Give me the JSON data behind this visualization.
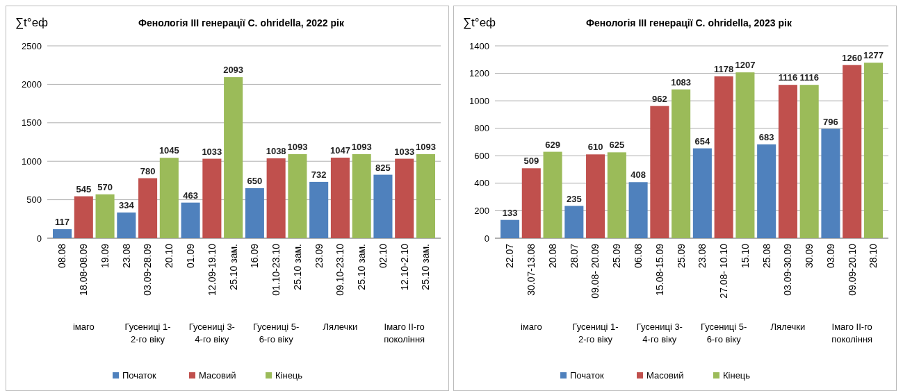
{
  "chart_data": [
    {
      "type": "bar",
      "title": "Фенологія ІІІ генерації C. ohridella, 2022 рік",
      "ylabel": "∑t°еф",
      "categories": [
        "08.08",
        "18.08-08.09",
        "19.09",
        "23.08",
        "03.09-28.09",
        "20.10",
        "01.09",
        "12.09-19.10",
        "25.10 зам.",
        "16.09",
        "01.10-23.10",
        "25.10 зам.",
        "23.09",
        "09.10-23.10",
        "25.10 зам.",
        "02.10",
        "12.10-2.10",
        "25.10 зам."
      ],
      "series": [
        {
          "name": "Початок",
          "color": "#4f81bd",
          "values": [
            117,
            null,
            null,
            334,
            null,
            null,
            463,
            null,
            null,
            650,
            null,
            null,
            732,
            null,
            null,
            825,
            null,
            null
          ]
        },
        {
          "name": "Масовий",
          "color": "#c0504d",
          "values": [
            null,
            545,
            null,
            null,
            780,
            null,
            null,
            1033,
            null,
            null,
            1038,
            null,
            null,
            1047,
            null,
            null,
            1033,
            null
          ]
        },
        {
          "name": "Кінець",
          "color": "#9bbb59",
          "values": [
            null,
            null,
            570,
            null,
            null,
            1045,
            null,
            null,
            2093,
            null,
            null,
            1093,
            null,
            null,
            1093,
            null,
            null,
            1093
          ]
        }
      ],
      "annotations": [
        "імаго",
        "Гусениці 1-2-го віку",
        "Гусениці 3-4-го віку",
        "Гусениці 5-6-го віку",
        "Лялечки",
        "Імаго ІІ-го покоління"
      ],
      "ylim": [
        0,
        2500
      ],
      "yticks": [
        0,
        500,
        1000,
        1500,
        2000,
        2500
      ],
      "grid": "y",
      "data_labels": true,
      "legend": "bottom"
    },
    {
      "type": "bar",
      "title": "Фенологія ІІІ генерації C. ohridella, 2023 рік",
      "ylabel": "∑t°еф",
      "categories": [
        "22.07",
        "30.07-13.08",
        "20.08",
        "28.07",
        "09.08- 20.09",
        "25.09",
        "06.08",
        "15.08-15.09",
        "25.09",
        "23.08",
        "27.08- 10.10",
        "15.10",
        "25.08",
        "03.09-30.09",
        "30.09",
        "03.09",
        "09.09-20.10",
        "28.10"
      ],
      "series": [
        {
          "name": "Початок",
          "color": "#4f81bd",
          "values": [
            133,
            null,
            null,
            235,
            null,
            null,
            408,
            null,
            null,
            654,
            null,
            null,
            683,
            null,
            null,
            796,
            null,
            null
          ]
        },
        {
          "name": "Масовий",
          "color": "#c0504d",
          "values": [
            null,
            509,
            null,
            null,
            610,
            null,
            null,
            962,
            null,
            null,
            1178,
            null,
            null,
            1116,
            null,
            null,
            1260,
            null
          ]
        },
        {
          "name": "Кінець",
          "color": "#9bbb59",
          "values": [
            null,
            null,
            629,
            null,
            null,
            625,
            null,
            null,
            1083,
            null,
            null,
            1207,
            null,
            null,
            1116,
            null,
            null,
            1277
          ]
        }
      ],
      "annotations": [
        "імаго",
        "Гусениці 1-2-го віку",
        "Гусениці 3-4-го віку",
        "Гусениці 5-6-го віку",
        "Лялечки",
        "Імаго ІІ-го покоління"
      ],
      "ylim": [
        0,
        1400
      ],
      "yticks": [
        0,
        200,
        400,
        600,
        800,
        1000,
        1200,
        1400
      ],
      "grid": "y",
      "data_labels": true,
      "legend": "bottom"
    }
  ]
}
